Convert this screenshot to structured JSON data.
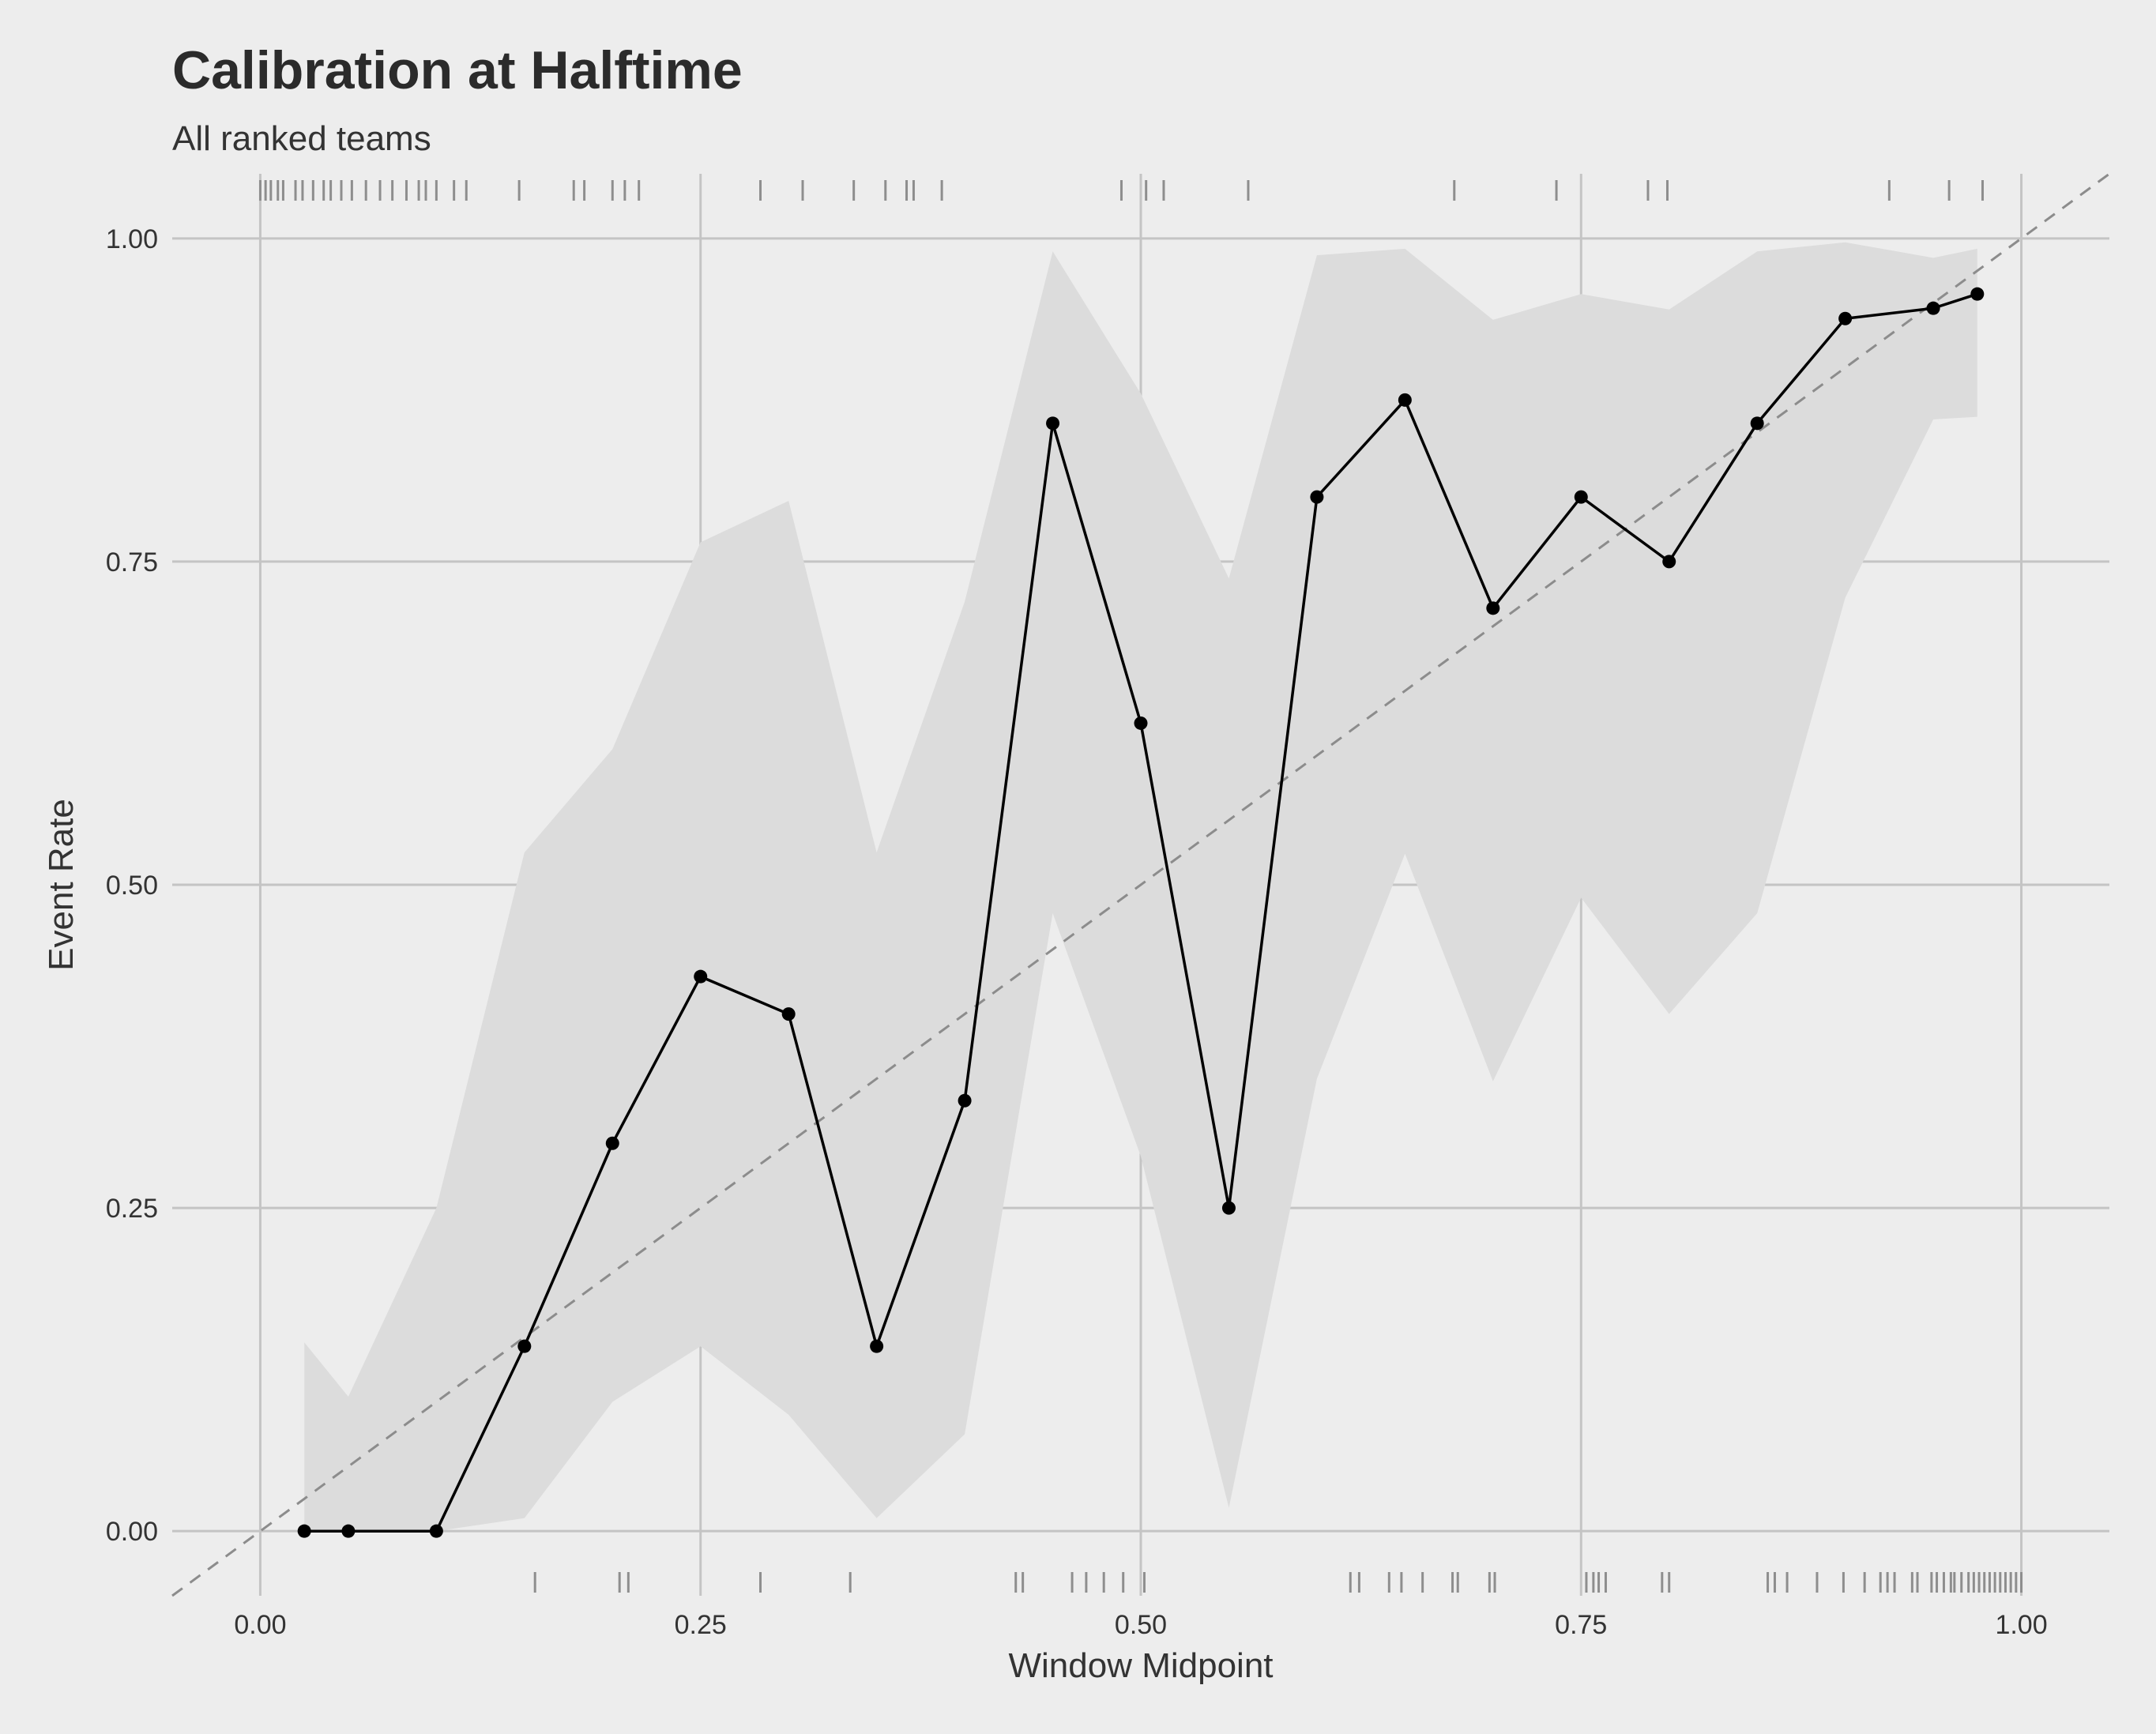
{
  "chart_data": {
    "type": "line",
    "title": "Calibration at Halftime",
    "subtitle": "All ranked teams",
    "xlabel": "Window Midpoint",
    "ylabel": "Event Rate",
    "xlim": [
      -0.05,
      1.05
    ],
    "ylim": [
      -0.05,
      1.05
    ],
    "x_ticks": [
      0.0,
      0.25,
      0.5,
      0.75,
      1.0
    ],
    "x_tick_labels": [
      "0.00",
      "0.25",
      "0.50",
      "0.75",
      "1.00"
    ],
    "y_ticks": [
      0.0,
      0.25,
      0.5,
      0.75,
      1.0
    ],
    "y_tick_labels": [
      "0.00",
      "0.25",
      "0.50",
      "0.75",
      "1.00"
    ],
    "grid": true,
    "reference_line": {
      "slope": 1,
      "intercept": 0,
      "style": "dashed",
      "color": "#8c8c8c"
    },
    "series": [
      {
        "x": [
          0.025,
          0.05,
          0.1,
          0.15,
          0.2,
          0.25,
          0.3,
          0.35,
          0.4,
          0.45,
          0.5,
          0.55,
          0.6,
          0.65,
          0.7,
          0.75,
          0.8,
          0.85,
          0.9,
          0.95,
          0.975
        ],
        "y": [
          0.0,
          0.0,
          0.0,
          0.143,
          0.3,
          0.429,
          0.4,
          0.143,
          0.333,
          0.857,
          0.625,
          0.25,
          0.8,
          0.875,
          0.714,
          0.8,
          0.75,
          0.857,
          0.938,
          0.946,
          0.957
        ],
        "lower": [
          0.0,
          0.0,
          0.0,
          0.01,
          0.1,
          0.143,
          0.09,
          0.01,
          0.075,
          0.478,
          0.29,
          0.018,
          0.35,
          0.524,
          0.348,
          0.49,
          0.4,
          0.478,
          0.722,
          0.86,
          0.862
        ],
        "upper": [
          0.146,
          0.104,
          0.25,
          0.525,
          0.605,
          0.765,
          0.797,
          0.525,
          0.719,
          0.99,
          0.88,
          0.737,
          0.987,
          0.992,
          0.937,
          0.957,
          0.945,
          0.99,
          0.997,
          0.985,
          0.992
        ],
        "color": "#000000",
        "band_color": "#dcdcdc"
      }
    ],
    "rug_top": [
      0.0,
      0.003,
      0.006,
      0.01,
      0.013,
      0.02,
      0.024,
      0.03,
      0.036,
      0.04,
      0.046,
      0.052,
      0.06,
      0.068,
      0.075,
      0.083,
      0.09,
      0.094,
      0.1,
      0.11,
      0.117,
      0.147,
      0.178,
      0.184,
      0.2,
      0.207,
      0.215,
      0.284,
      0.308,
      0.337,
      0.355,
      0.367,
      0.371,
      0.387,
      0.489,
      0.503,
      0.513,
      0.561,
      0.678,
      0.736,
      0.788,
      0.799,
      0.925,
      0.959,
      0.978
    ],
    "rug_bottom": [
      0.156,
      0.204,
      0.209,
      0.284,
      0.335,
      0.429,
      0.433,
      0.461,
      0.469,
      0.479,
      0.49,
      0.502,
      0.619,
      0.624,
      0.641,
      0.648,
      0.66,
      0.677,
      0.68,
      0.698,
      0.701,
      0.753,
      0.757,
      0.76,
      0.764,
      0.796,
      0.8,
      0.856,
      0.86,
      0.867,
      0.884,
      0.899,
      0.911,
      0.92,
      0.924,
      0.928,
      0.938,
      0.941,
      0.949,
      0.952,
      0.956,
      0.96,
      0.962,
      0.966,
      0.97,
      0.973,
      0.976,
      0.979,
      0.982,
      0.985,
      0.988,
      0.991,
      0.994,
      0.997,
      1.0
    ]
  }
}
